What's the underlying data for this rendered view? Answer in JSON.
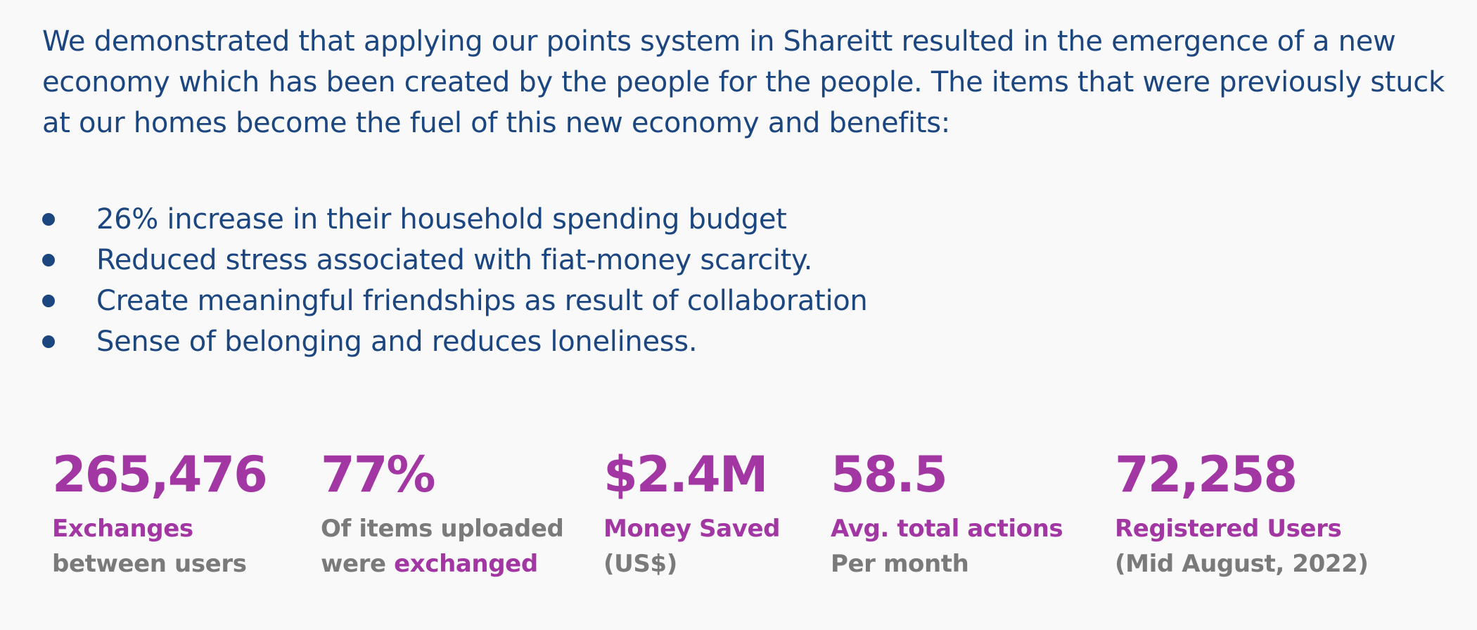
{
  "intro": {
    "text": "We demonstrated that applying our points system in Shareitt resulted in the emergence of a new economy which has been created by the people for the people. The items that were previously stuck at our homes become the fuel of this new economy and benefits:"
  },
  "benefits": [
    "26% increase in their household spending budget",
    "Reduced stress associated with fiat-money scarcity.",
    "Create meaningful friendships as result of collaboration",
    "Sense of belonging and reduces loneliness."
  ],
  "stats": [
    {
      "value": "265,476",
      "line1": "Exchanges",
      "line2": "between users"
    },
    {
      "value": "77%",
      "line1": "Of items uploaded",
      "line2_prefix": "were ",
      "line2_accent": "exchanged"
    },
    {
      "value": "$2.4M",
      "line1": "Money Saved",
      "line2": "(US$)"
    },
    {
      "value": "58.5",
      "line1": "Avg. total actions",
      "line2": "Per month"
    },
    {
      "value": "72,258",
      "line1": "Registered Users",
      "line2": "(Mid August, 2022)"
    }
  ],
  "colors": {
    "text_blue": "#1c4680",
    "accent_purple": "#a236a2",
    "muted_gray": "#7a7a7a",
    "background": "#f9f9fa"
  }
}
